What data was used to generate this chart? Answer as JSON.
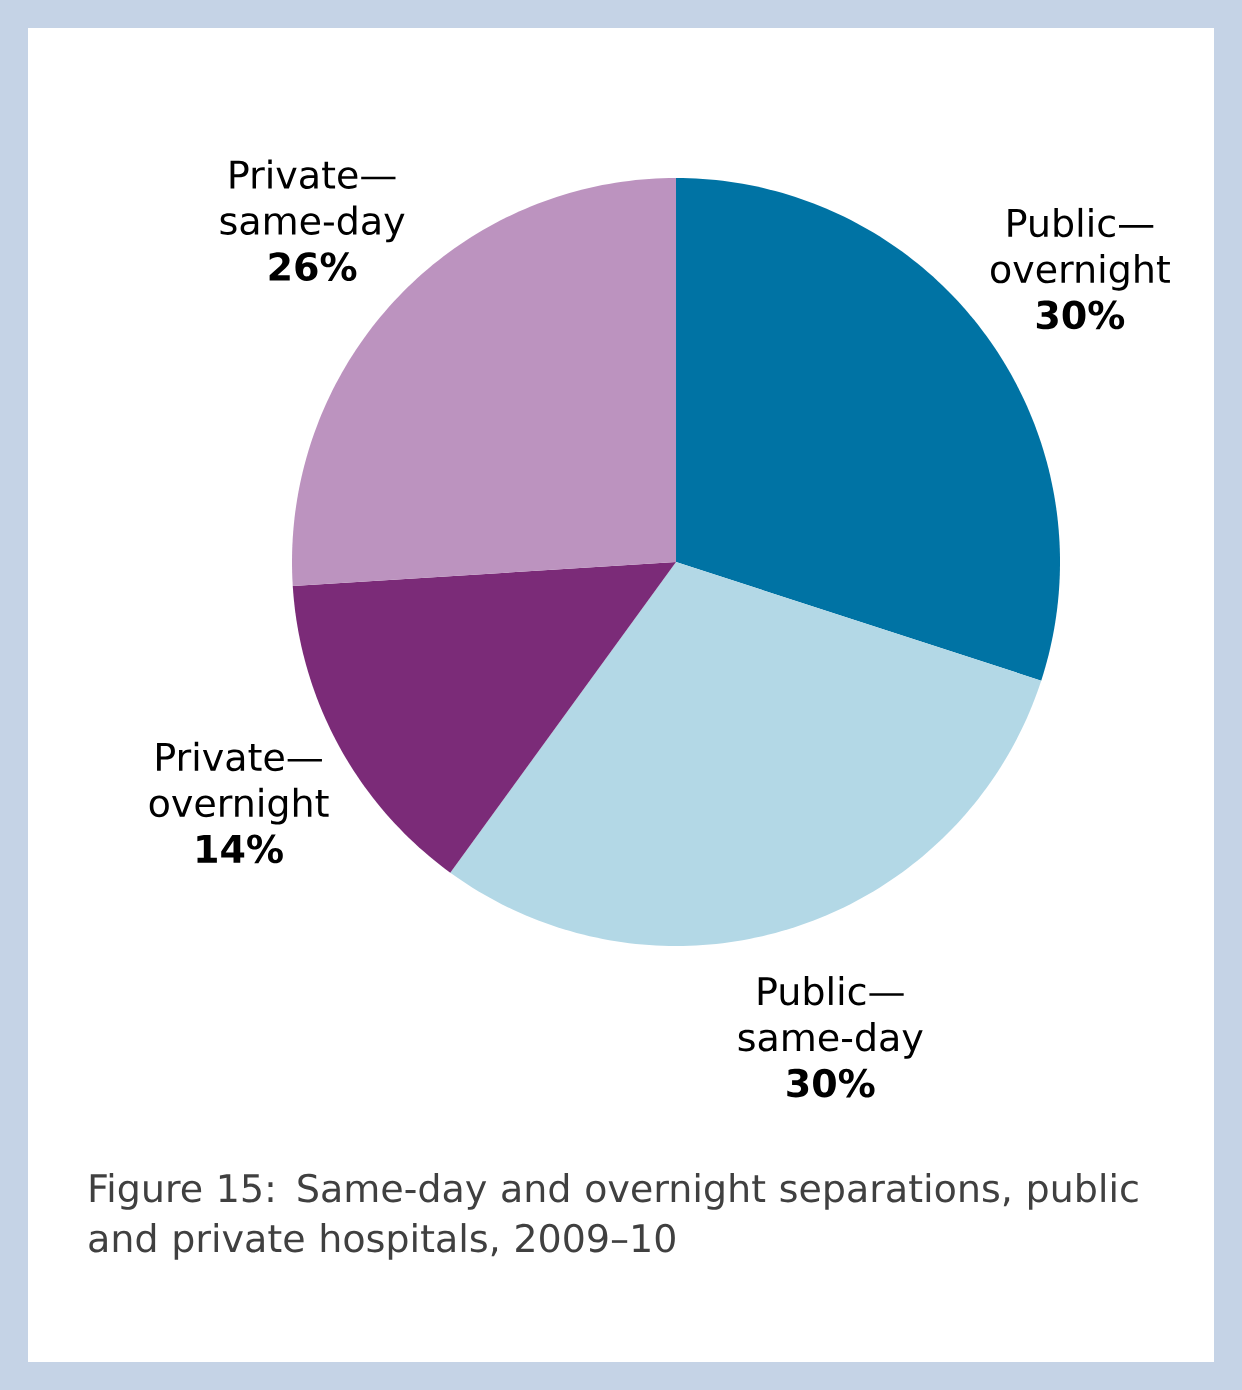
{
  "chart_data": {
    "type": "pie",
    "title": "Figure 15: Same-day and overnight separations, public and private hospitals, 2009–10",
    "categories": [
      "Public—overnight",
      "Public—same-day",
      "Private—overnight",
      "Private—same-day"
    ],
    "values": [
      30,
      30,
      14,
      26
    ],
    "value_labels": [
      "30%",
      "30%",
      "14%",
      "26%"
    ],
    "colors": [
      "#0073a4",
      "#b3d8e6",
      "#7b2b78",
      "#bc93bf"
    ]
  }
}
